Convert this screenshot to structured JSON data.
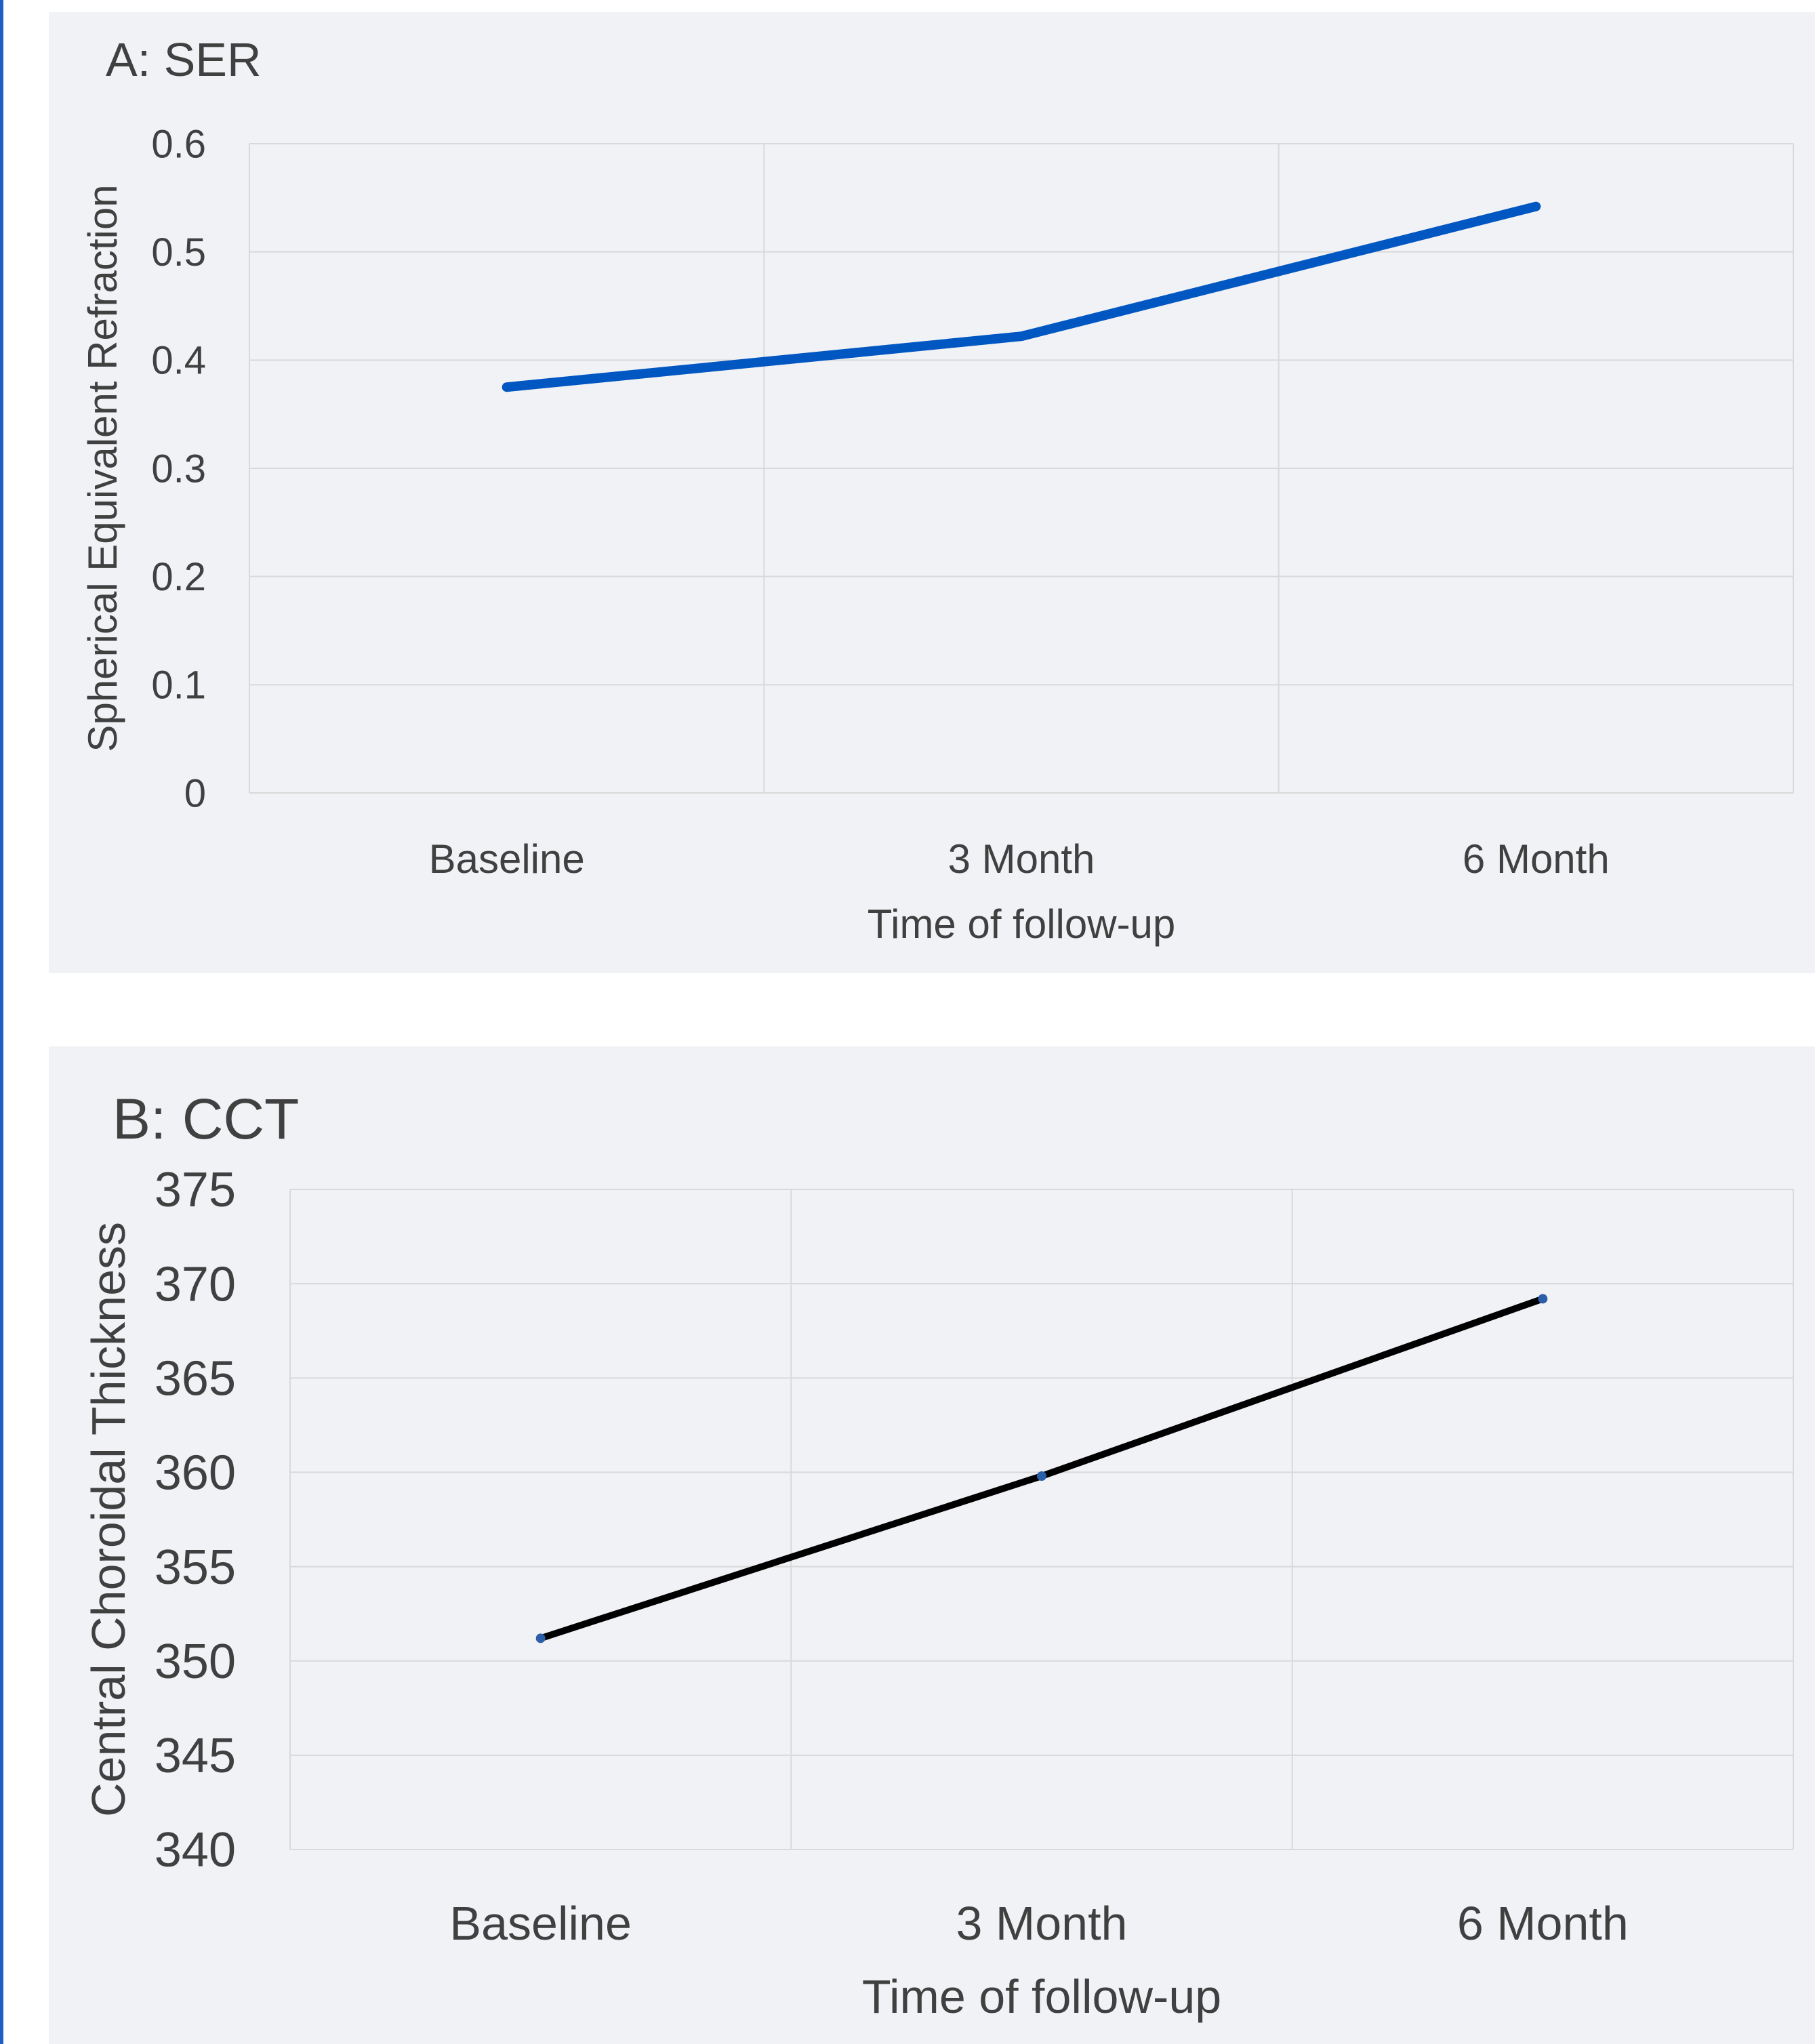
{
  "colors": {
    "panel_bg": "#f1f2f6",
    "grid": "#d9d9d9",
    "text": "#404040",
    "series_a": "#0057c2",
    "series_b": "#000000",
    "marker_b": "#2a5ea8",
    "left_rule": "#1f5fc4"
  },
  "chart_data": [
    {
      "type": "line",
      "title": "A: SER",
      "xlabel": "Time of follow-up",
      "ylabel": "Spherical Equivalent Refraction",
      "categories": [
        "Baseline",
        "3 Month",
        "6 Month"
      ],
      "series": [
        {
          "values": [
            0.375,
            0.422,
            0.542
          ]
        }
      ],
      "ylim": [
        0,
        0.6
      ],
      "yticks": [
        "0",
        "0.1",
        "0.2",
        "0.3",
        "0.4",
        "0.5",
        "0.6"
      ],
      "grid": true,
      "legend": "none"
    },
    {
      "type": "line",
      "title": "B: CCT",
      "xlabel": "Time of follow-up",
      "ylabel": "Central Choroidal Thickness",
      "categories": [
        "Baseline",
        "3 Month",
        "6 Month"
      ],
      "series": [
        {
          "values": [
            351.2,
            359.8,
            369.2
          ]
        }
      ],
      "ylim": [
        340,
        375
      ],
      "yticks": [
        "340",
        "345",
        "350",
        "355",
        "360",
        "365",
        "370",
        "375"
      ],
      "grid": true,
      "legend": "none"
    }
  ]
}
